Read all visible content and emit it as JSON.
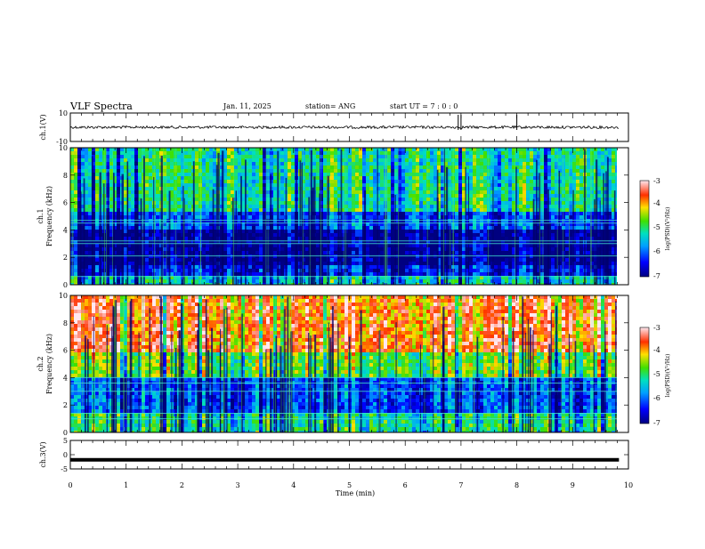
{
  "header": {
    "title": "VLF Spectra",
    "date": "Jan. 11, 2025",
    "station": "station= ANG",
    "start": "start UT =   7 : 0  : 0"
  },
  "chart_data": [
    {
      "type": "line",
      "name": "ch1-waveform",
      "ylabel": "ch.1(V)",
      "ylim": [
        -10,
        10
      ],
      "yticks": [
        "10",
        "-10"
      ],
      "xlim": [
        0,
        10
      ],
      "baseline_value": 0
    },
    {
      "type": "heatmap",
      "name": "ch1-spectrogram",
      "ylabel": "ch.1\nFrequency (kHz)",
      "ylabel_lines": [
        "ch.1",
        "Frequency  (kHz)"
      ],
      "ylim": [
        0,
        10
      ],
      "yticks": [
        "0",
        "2",
        "4",
        "6",
        "8",
        "10"
      ],
      "xlim": [
        0,
        9.83
      ],
      "colorbar": {
        "label": "log(PSD)(V²/Hz)",
        "range": [
          -7,
          -3
        ],
        "ticks": [
          "-3",
          "-4",
          "-5",
          "-6",
          "-7"
        ]
      },
      "bands": [
        {
          "from": 0,
          "to": 0.8,
          "level": -5.2
        },
        {
          "from": 0.8,
          "to": 1.6,
          "level": -6.3
        },
        {
          "from": 1.6,
          "to": 4.2,
          "level": -6.8
        },
        {
          "from": 4.2,
          "to": 5.5,
          "level": -6.0
        },
        {
          "from": 5.5,
          "to": 10,
          "level": -5.0
        }
      ],
      "lines_khz": [
        0.6,
        2.1,
        3.0,
        3.2,
        4.5,
        4.7
      ]
    },
    {
      "type": "heatmap",
      "name": "ch2-spectrogram",
      "ylabel": "ch.2\nFrequency (kHz)",
      "ylabel_lines": [
        "ch.2",
        "Frequency  (kHz)"
      ],
      "ylim": [
        0,
        10
      ],
      "yticks": [
        "0",
        "2",
        "4",
        "6",
        "8",
        "10"
      ],
      "xlim": [
        0,
        9.83
      ],
      "colorbar": {
        "label": "log(PSD)(V²/Hz)",
        "range": [
          -7,
          -3
        ],
        "ticks": [
          "-3",
          "-4",
          "-5",
          "-6",
          "-7"
        ]
      },
      "bands": [
        {
          "from": 0,
          "to": 1.5,
          "level": -5.0
        },
        {
          "from": 1.5,
          "to": 4.0,
          "level": -6.0
        },
        {
          "from": 4.0,
          "to": 6.0,
          "level": -4.6
        },
        {
          "from": 6.0,
          "to": 10,
          "level": -3.6
        }
      ],
      "lines_khz": [
        1.0,
        1.4,
        3.0,
        3.6,
        4.0
      ]
    },
    {
      "type": "line",
      "name": "ch3-waveform",
      "ylabel": "ch.3(V)",
      "ylim": [
        -5,
        5
      ],
      "yticks": [
        "5",
        "0",
        "-5"
      ],
      "xlim": [
        0,
        10
      ],
      "baseline_value": -1.8
    }
  ],
  "xaxis": {
    "label": "Time  (min)",
    "ticks": [
      "0",
      "1",
      "2",
      "3",
      "4",
      "5",
      "6",
      "7",
      "8",
      "9",
      "10"
    ],
    "range": [
      0,
      10
    ]
  }
}
